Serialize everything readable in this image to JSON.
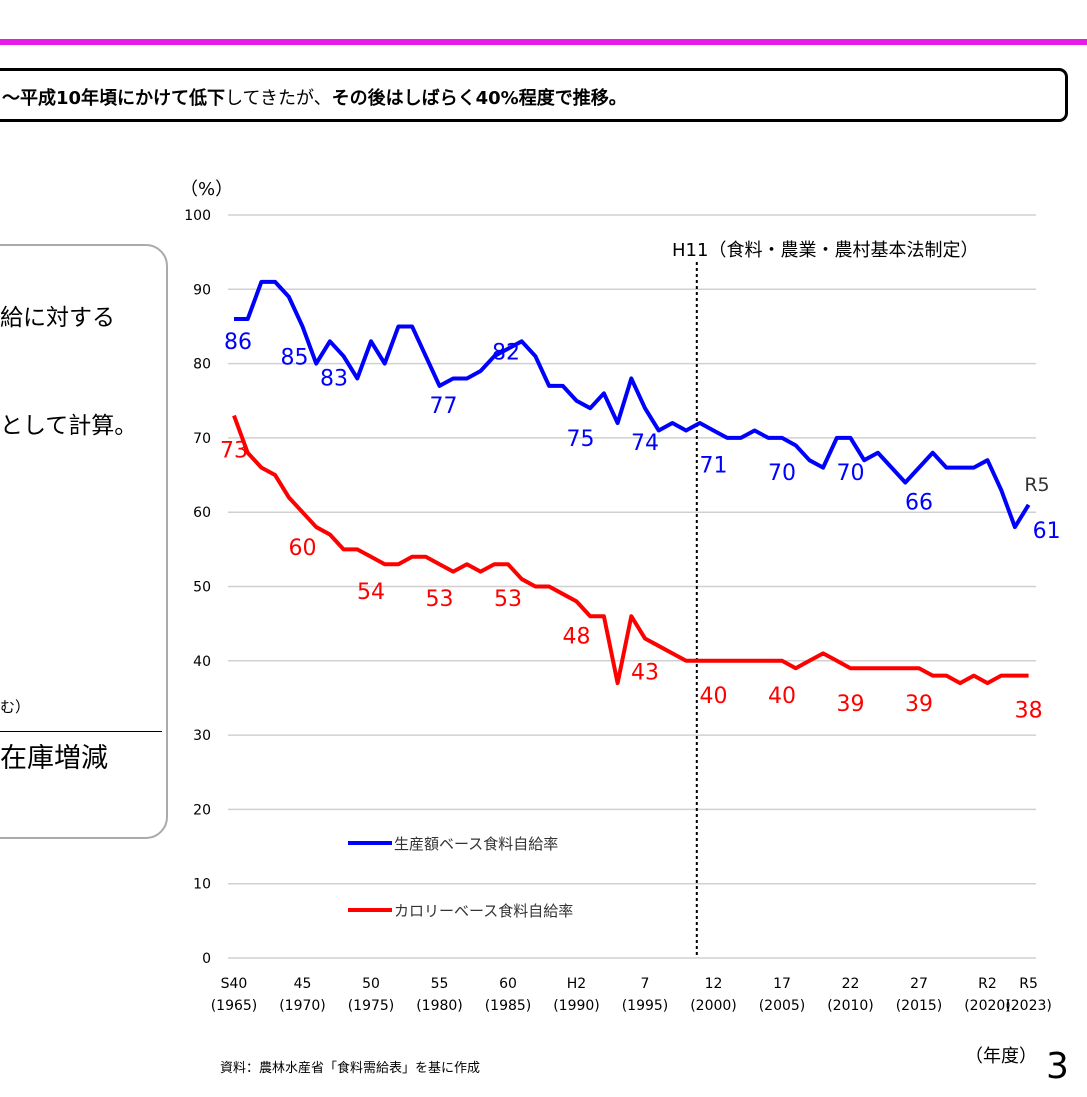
{
  "headline": {
    "part1_bold": "〜平成10年頃にかけて低下",
    "part2": "してきたが、",
    "part3_bold": "その後はしばらく40%程度で推移。"
  },
  "left_panel": {
    "line1": "給に対する",
    "line2": "として計算。",
    "line3": "む）",
    "line4": "在庫増減"
  },
  "colors": {
    "accent_bar": "#e81ae8",
    "production": "#0000ff",
    "calorie": "#ff0000"
  },
  "chart_data": {
    "type": "line",
    "ylabel": "（%）",
    "xlabel": "（年度）",
    "ylim": [
      0,
      100
    ],
    "yticks": [
      0,
      10,
      20,
      30,
      40,
      50,
      60,
      70,
      80,
      90,
      100
    ],
    "grid": true,
    "legend_placement": "bottom-left",
    "x": [
      1965,
      1966,
      1967,
      1968,
      1969,
      1970,
      1971,
      1972,
      1973,
      1974,
      1975,
      1976,
      1977,
      1978,
      1979,
      1980,
      1981,
      1982,
      1983,
      1984,
      1985,
      1986,
      1987,
      1988,
      1989,
      1990,
      1991,
      1992,
      1993,
      1994,
      1995,
      1996,
      1997,
      1998,
      1999,
      2000,
      2001,
      2002,
      2003,
      2004,
      2005,
      2006,
      2007,
      2008,
      2009,
      2010,
      2011,
      2012,
      2013,
      2014,
      2015,
      2016,
      2017,
      2018,
      2019,
      2020,
      2021,
      2022,
      2023
    ],
    "xticks": [
      {
        "year": 1965,
        "era": "S40",
        "label": "(1965)"
      },
      {
        "year": 1970,
        "era": "45",
        "label": "(1970)"
      },
      {
        "year": 1975,
        "era": "50",
        "label": "(1975)"
      },
      {
        "year": 1980,
        "era": "55",
        "label": "(1980)"
      },
      {
        "year": 1985,
        "era": "60",
        "label": "(1985)"
      },
      {
        "year": 1990,
        "era": "H2",
        "label": "(1990)"
      },
      {
        "year": 1995,
        "era": "7",
        "label": "(1995)"
      },
      {
        "year": 2000,
        "era": "12",
        "label": "(2000)"
      },
      {
        "year": 2005,
        "era": "17",
        "label": "(2005)"
      },
      {
        "year": 2010,
        "era": "22",
        "label": "(2010)"
      },
      {
        "year": 2015,
        "era": "27",
        "label": "(2015)"
      },
      {
        "year": 2020,
        "era": "R2",
        "label": "(2020)"
      },
      {
        "year": 2023,
        "era": "R5",
        "label": "(2023)"
      }
    ],
    "series": [
      {
        "name": "生産額ベース食料自給率",
        "color": "#0000ff",
        "values": [
          86,
          86,
          91,
          91,
          89,
          85,
          80,
          83,
          81,
          78,
          83,
          80,
          85,
          85,
          81,
          77,
          78,
          78,
          79,
          81,
          82,
          83,
          81,
          77,
          77,
          75,
          74,
          76,
          72,
          78,
          74,
          71,
          72,
          71,
          72,
          71,
          70,
          70,
          71,
          70,
          70,
          69,
          67,
          66,
          70,
          70,
          67,
          68,
          66,
          64,
          66,
          68,
          66,
          66,
          66,
          67,
          63,
          58,
          61
        ],
        "data_labels": [
          [
            1965,
            "86"
          ],
          [
            1970,
            "85"
          ],
          [
            1975,
            "83"
          ],
          [
            1980,
            "77"
          ],
          [
            1985,
            "82"
          ],
          [
            1990,
            "75"
          ],
          [
            1995,
            "74"
          ],
          [
            2000,
            "71"
          ],
          [
            2005,
            "70"
          ],
          [
            2010,
            "70"
          ],
          [
            2015,
            "66"
          ],
          [
            2023,
            "61"
          ]
        ]
      },
      {
        "name": "カロリーベース食料自給率",
        "color": "#ff0000",
        "values": [
          73,
          68,
          66,
          65,
          62,
          60,
          58,
          57,
          55,
          55,
          54,
          53,
          53,
          54,
          54,
          53,
          52,
          53,
          52,
          53,
          53,
          51,
          50,
          50,
          49,
          48,
          46,
          46,
          37,
          46,
          43,
          42,
          41,
          40,
          40,
          40,
          40,
          40,
          40,
          40,
          40,
          39,
          40,
          41,
          40,
          39,
          39,
          39,
          39,
          39,
          39,
          38,
          38,
          37,
          38,
          37,
          38,
          38,
          38
        ],
        "data_labels": [
          [
            1965,
            "73"
          ],
          [
            1970,
            "60"
          ],
          [
            1975,
            "54"
          ],
          [
            1980,
            "53"
          ],
          [
            1985,
            "53"
          ],
          [
            1990,
            "48"
          ],
          [
            1995,
            "43"
          ],
          [
            2000,
            "40"
          ],
          [
            2005,
            "40"
          ],
          [
            2010,
            "39"
          ],
          [
            2015,
            "39"
          ],
          [
            2023,
            "38"
          ]
        ]
      }
    ],
    "annotations": [
      {
        "year": 1999,
        "text": "H11（食料・農業・農村基本法制定）",
        "style": "dotted-vertical-line"
      },
      {
        "year": 2023,
        "text": "R5"
      }
    ]
  },
  "source": "資料：農林水産省「食料需給表」を基に作成",
  "page_number": "3"
}
